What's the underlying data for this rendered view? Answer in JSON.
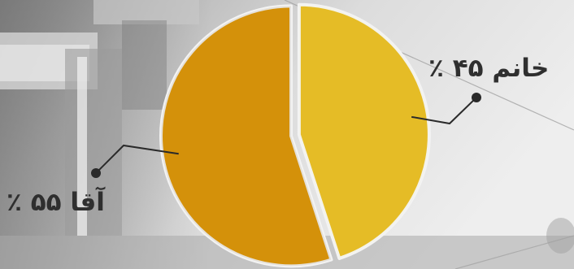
{
  "chart_data": {
    "type": "pie",
    "slices": [
      {
        "label": "خانم ۴۵ ٪",
        "value": 45,
        "color": "#e2b414"
      },
      {
        "label": "آقا ۵۵ ٪",
        "value": 55,
        "color": "#e09a0c"
      }
    ],
    "title": "",
    "legend": "none"
  }
}
